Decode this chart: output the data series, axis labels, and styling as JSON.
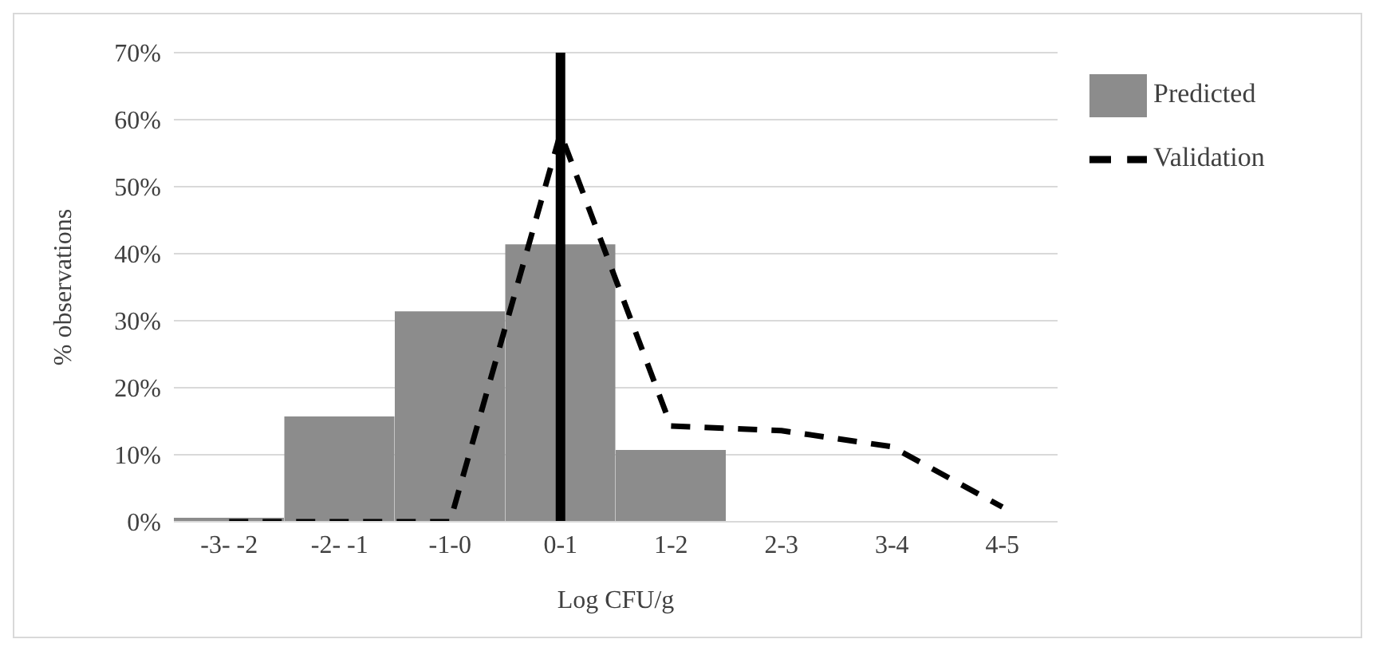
{
  "chart_data": {
    "type": "bar",
    "xlabel": "Log CFU/g",
    "ylabel": "% observations",
    "categories": [
      "-3- -2",
      "-2- -1",
      "-1-0",
      "0-1",
      "1-2",
      "2-3",
      "3-4",
      "4-5"
    ],
    "series": [
      {
        "name": "Predicted",
        "color": "#8c8c8c",
        "values": [
          0.6,
          15.7,
          31.4,
          41.4,
          10.7,
          0,
          0,
          0
        ]
      },
      {
        "name": "Validation",
        "type": "line",
        "color": "#000000",
        "line_style": "dashed",
        "marker": "none",
        "values": [
          0,
          0,
          0,
          58,
          14.3,
          13.6,
          11.2,
          2.2
        ]
      }
    ],
    "ylim": [
      0,
      70
    ],
    "yticks": [
      {
        "value": 0,
        "label": "0%"
      },
      {
        "value": 10,
        "label": "10%"
      },
      {
        "value": 20,
        "label": "20%"
      },
      {
        "value": 30,
        "label": "30%"
      },
      {
        "value": 40,
        "label": "40%"
      },
      {
        "value": 50,
        "label": "50%"
      },
      {
        "value": 60,
        "label": "60%"
      },
      {
        "value": 70,
        "label": "70%"
      }
    ],
    "ref_lines": [
      {
        "axis": "x",
        "value": "0-1",
        "color": "#000000",
        "line_style": "solid"
      }
    ],
    "grid": "y",
    "legend": "top right"
  }
}
